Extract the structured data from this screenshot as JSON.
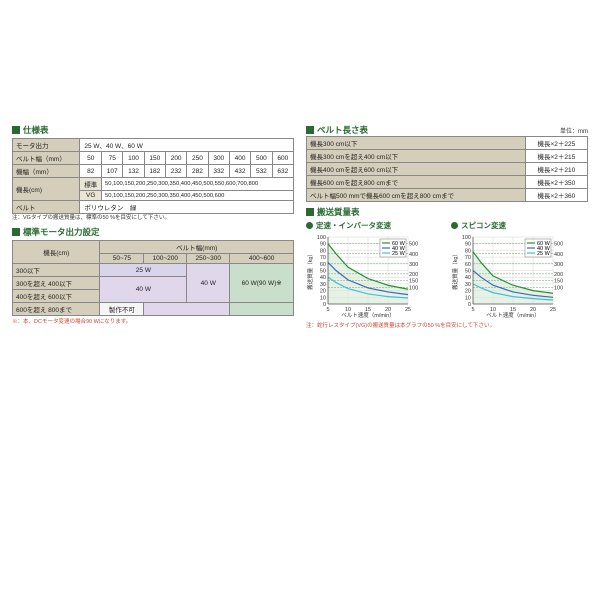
{
  "sections": {
    "spec_title": "仕様表",
    "motor_title": "標準モータ出力設定",
    "belt_len_title": "ベルト長さ表",
    "capacity_title": "搬送質量表",
    "chart1_title": "定速・インバータ変速",
    "chart2_title": "スピコン変速"
  },
  "spec_table": {
    "rows": [
      {
        "label": "モータ出力",
        "span": "25 W、40 W、60 W"
      },
      {
        "label": "ベルト幅（mm）",
        "cells": [
          "50",
          "75",
          "100",
          "150",
          "200",
          "250",
          "300",
          "400",
          "500",
          "600"
        ]
      },
      {
        "label": "機幅（mm）",
        "cells": [
          "82",
          "107",
          "132",
          "182",
          "232",
          "282",
          "332",
          "432",
          "532",
          "632"
        ]
      }
    ],
    "len_std_label": "機長(cm)",
    "len_std_sub1": "標準",
    "len_std_sub2": "VG",
    "len_std1": "50,100,150,200,250,300,350,400,450,500,550,600,700,800",
    "len_std2": "50,100,150,200,250,300,350,400,450,500,600",
    "belt_label": "ベルト",
    "belt_val": "ポリウレタン　緑",
    "note": "注：VGタイプの搬送質量は、標準の50 %を目安にして下さい。"
  },
  "motor_table": {
    "col_header": "ベルト幅(mm)",
    "row_header": "機長(cm)",
    "cols": [
      "50~75",
      "100~200",
      "250~300",
      "400~600"
    ],
    "rows": [
      "300以下",
      "300を超え 400以下",
      "400を超え 600以下",
      "600を超え 800まで"
    ],
    "v25": "25 W",
    "v40": "40 W",
    "v60": "60 W(90 W)※",
    "vna": "製作不可",
    "note": "※：本、DCモータ変速の場合90 Wになります。"
  },
  "belt_len": {
    "unit": "単位：mm",
    "rows": [
      [
        "機長300 cm以下",
        "機長×2＋225"
      ],
      [
        "機長300 cmを超え400 cm以下",
        "機長×2＋215"
      ],
      [
        "機長400 cmを超え600 cm以下",
        "機長×2＋210"
      ],
      [
        "機長600 cmを超え800 cmまで",
        "機長×2＋350"
      ],
      [
        "ベルト幅500 mmで機長600 cmを超え800 cmまで",
        "機長×2＋360"
      ]
    ]
  },
  "charts": {
    "xlabel": "ベルト速度（m/min）",
    "ylabel_left": "搬送質量（kg）",
    "ylabel_right": "ベルト幅によるモータの限界質量（kg）",
    "xticks": [
      "5",
      "10",
      "15",
      "20",
      "25"
    ],
    "yticks": [
      "0",
      "10",
      "20",
      "30",
      "40",
      "50",
      "60",
      "70",
      "80",
      "90",
      "100"
    ],
    "legend": [
      "60 W",
      "40 W",
      "25 W"
    ],
    "belt_widths": [
      "500",
      "400",
      "300",
      "200",
      "150",
      "100"
    ],
    "colors": {
      "w60": "#2a9030",
      "w40": "#3a6ab8",
      "w25": "#4abbd8",
      "bw_line": "#6aa06e",
      "grid": "#ccc",
      "axis": "#555",
      "fill": "#d6ead6"
    },
    "chart1_series": {
      "w60": [
        [
          5,
          90
        ],
        [
          7,
          75
        ],
        [
          10,
          55
        ],
        [
          15,
          38
        ],
        [
          20,
          28
        ],
        [
          25,
          22
        ]
      ],
      "w40": [
        [
          5,
          62
        ],
        [
          7,
          50
        ],
        [
          10,
          36
        ],
        [
          15,
          24
        ],
        [
          20,
          18
        ],
        [
          25,
          14
        ]
      ],
      "w25": [
        [
          5,
          40
        ],
        [
          7,
          32
        ],
        [
          10,
          23
        ],
        [
          15,
          15
        ],
        [
          20,
          11
        ],
        [
          25,
          9
        ]
      ]
    },
    "chart2_series": {
      "w60": [
        [
          5,
          78
        ],
        [
          7,
          62
        ],
        [
          10,
          42
        ],
        [
          15,
          28
        ],
        [
          20,
          20
        ],
        [
          25,
          16
        ]
      ],
      "w40": [
        [
          5,
          50
        ],
        [
          7,
          40
        ],
        [
          10,
          28
        ],
        [
          15,
          18
        ],
        [
          20,
          13
        ],
        [
          25,
          10
        ]
      ],
      "w25": [
        [
          5,
          30
        ],
        [
          7,
          24
        ],
        [
          10,
          17
        ],
        [
          15,
          11
        ],
        [
          20,
          8
        ],
        [
          25,
          6
        ]
      ]
    },
    "note": "注：蛇行レスタイプ(VG)の搬送質量は本グラフの50 %を目安にして下さい。"
  }
}
